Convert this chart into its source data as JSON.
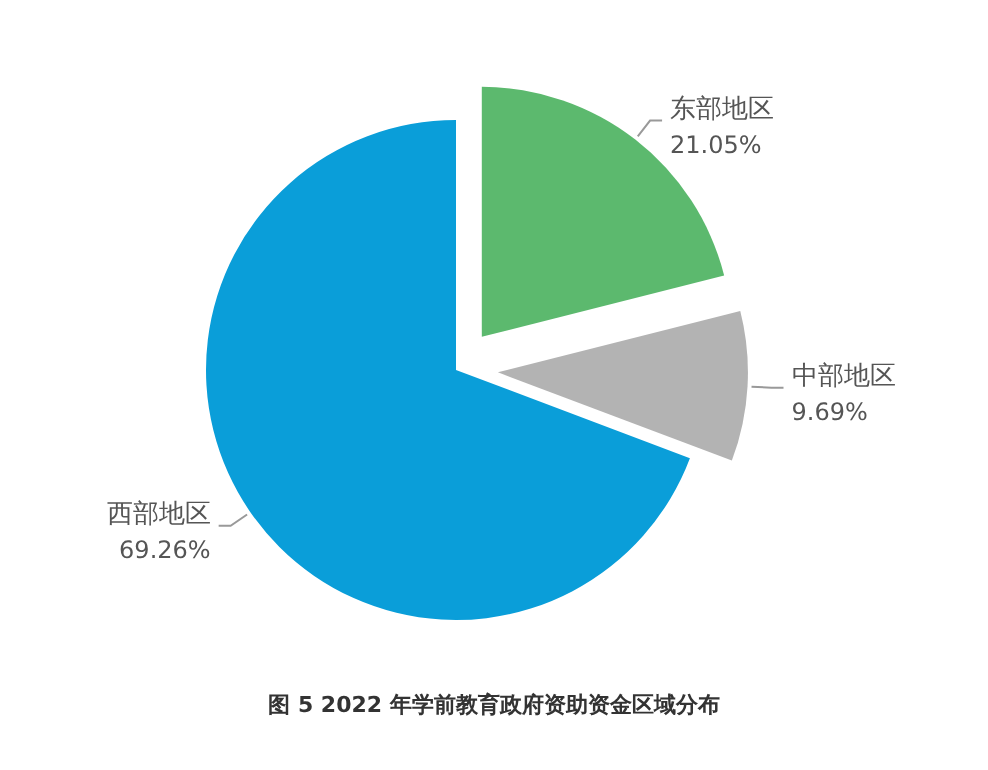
{
  "chart_data": {
    "type": "pie",
    "title": "图 5  2022 年学前教育政府资助资金区域分布",
    "categories": [
      "东部地区",
      "中部地区",
      "西部地区"
    ],
    "values": [
      21.05,
      9.69,
      69.26
    ],
    "value_labels": [
      "21.05%",
      "9.69%",
      "69.26%"
    ],
    "colors": [
      "#5cb96e",
      "#b3b3b3",
      "#0a9ed9"
    ]
  }
}
